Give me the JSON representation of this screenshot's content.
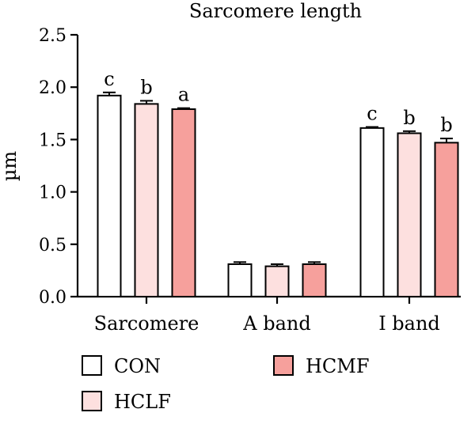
{
  "chart_data": {
    "type": "bar",
    "title": "Sarcomere length",
    "xlabel": "",
    "ylabel": "µm",
    "ylim": [
      0,
      2.5
    ],
    "yticks": [
      "0.0",
      "0.5",
      "1.0",
      "1.5",
      "2.0",
      "2.5"
    ],
    "categories": [
      "Sarcomere",
      "A band",
      "I band"
    ],
    "series": [
      {
        "name": "CON",
        "color": "#ffffff",
        "values": [
          1.92,
          0.31,
          1.61
        ],
        "errors": [
          0.03,
          0.02,
          0.01
        ],
        "labels": [
          "c",
          "",
          "c"
        ]
      },
      {
        "name": "HCLF",
        "color": "#fde0df",
        "values": [
          1.84,
          0.29,
          1.56
        ],
        "errors": [
          0.03,
          0.02,
          0.02
        ],
        "labels": [
          "b",
          "",
          "b"
        ]
      },
      {
        "name": "HCMF",
        "color": "#f6a09c",
        "values": [
          1.79,
          0.31,
          1.47
        ],
        "errors": [
          0.01,
          0.02,
          0.04
        ],
        "labels": [
          "a",
          "",
          "b"
        ]
      }
    ],
    "legend": "bottom",
    "grid": false
  }
}
